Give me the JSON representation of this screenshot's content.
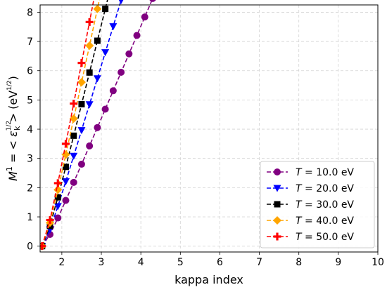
{
  "chart_data": {
    "type": "line",
    "xlabel": "kappa index",
    "ylabel": "M¹ = <ε_k^½> (eV^½)",
    "ylabel_parts": {
      "lhs": "M",
      "lhs_sup": "1",
      "eq": " = < ",
      "eps": "ε",
      "eps_sup": "1/2",
      "eps_sub": "k",
      "close": " > (eV",
      "unit_sup": "1/2",
      "end": ")"
    },
    "xlim": [
      1.45,
      10.0
    ],
    "ylim": [
      -0.2,
      8.25
    ],
    "xticks": [
      2,
      3,
      4,
      5,
      6,
      7,
      8,
      9,
      10
    ],
    "yticks": [
      0,
      1,
      2,
      3,
      4,
      5,
      6,
      7,
      8
    ],
    "grid": true,
    "legend_position": "bottom-right",
    "kappa_start": 1.5,
    "kappa_step": 0.2,
    "point_count": 43,
    "series": [
      {
        "name_prefix": "T",
        "name": "= 10.0 eV",
        "T": 10,
        "color": "#800080",
        "marker": "circle"
      },
      {
        "name_prefix": "T",
        "name": "= 20.0 eV",
        "T": 20,
        "color": "#0000ff",
        "marker": "triangle-down"
      },
      {
        "name_prefix": "T",
        "name": "= 30.0 eV",
        "T": 30,
        "color": "#000000",
        "marker": "square"
      },
      {
        "name_prefix": "T",
        "name": "= 40.0 eV",
        "T": 40,
        "color": "#ffa500",
        "marker": "diamond"
      },
      {
        "name_prefix": "T",
        "name": "= 50.0 eV",
        "T": 50,
        "color": "#ff0000",
        "marker": "plus"
      }
    ]
  }
}
